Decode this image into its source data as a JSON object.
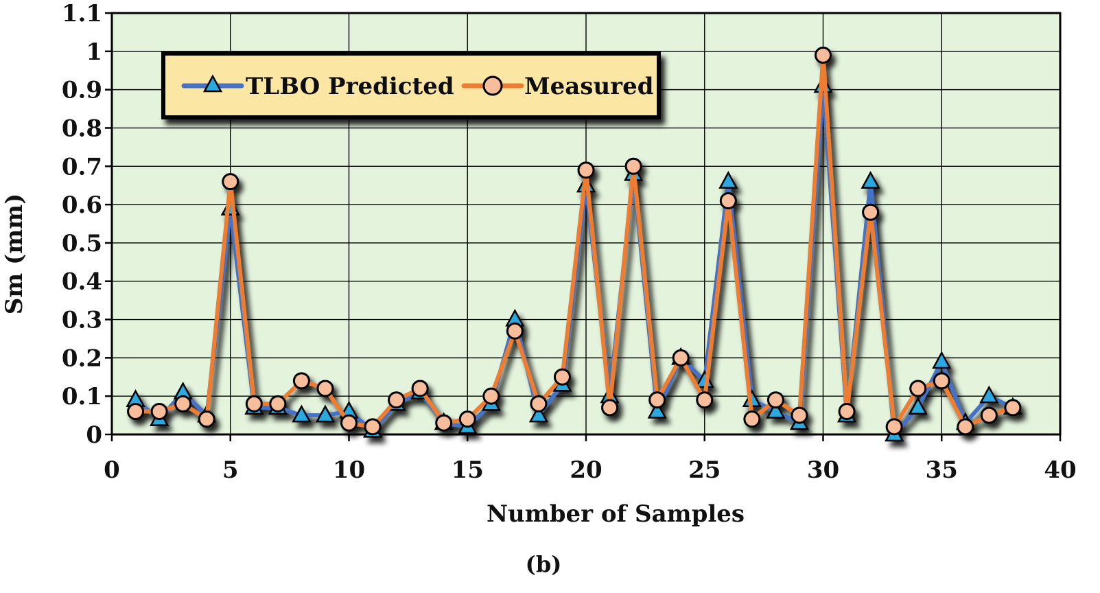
{
  "chart_data": {
    "type": "line",
    "title": "",
    "caption": "(b)",
    "xlabel": "Number of Samples",
    "ylabel": "Sm (mm)",
    "xlim": [
      0,
      40
    ],
    "ylim": [
      0,
      1.1
    ],
    "xticks": [
      0,
      5,
      10,
      15,
      20,
      25,
      30,
      35,
      40
    ],
    "yticks": [
      0,
      0.1,
      0.2,
      0.3,
      0.4,
      0.5,
      0.6,
      0.7,
      0.8,
      0.9,
      1,
      1.1
    ],
    "xtick_labels": [
      "0",
      "5",
      "10",
      "15",
      "20",
      "25",
      "30",
      "35",
      "40"
    ],
    "ytick_labels": [
      "0",
      "0.1",
      "0.2",
      "0.3",
      "0.4",
      "0.5",
      "0.6",
      "0.7",
      "0.8",
      "0.9",
      "1",
      "1.1"
    ],
    "grid": true,
    "legend_position": "top-left",
    "x": [
      1,
      2,
      3,
      4,
      5,
      6,
      7,
      8,
      9,
      10,
      11,
      12,
      13,
      14,
      15,
      16,
      17,
      18,
      19,
      20,
      21,
      22,
      23,
      24,
      25,
      26,
      27,
      28,
      29,
      30,
      31,
      32,
      33,
      34,
      35,
      36,
      37,
      38
    ],
    "series": [
      {
        "name": "TLBO Predicted",
        "color": "#4472c4",
        "marker": "triangle",
        "marker_color": "#29a8e0",
        "values": [
          0.09,
          0.04,
          0.11,
          0.05,
          0.59,
          0.07,
          0.07,
          0.05,
          0.05,
          0.06,
          0.01,
          0.08,
          0.11,
          0.03,
          0.02,
          0.08,
          0.3,
          0.05,
          0.13,
          0.65,
          0.1,
          0.68,
          0.06,
          0.2,
          0.14,
          0.66,
          0.09,
          0.06,
          0.03,
          0.91,
          0.05,
          0.66,
          0.0,
          0.07,
          0.19,
          0.03,
          0.1,
          0.07
        ]
      },
      {
        "name": "Measured",
        "color": "#ed7d31",
        "marker": "circle",
        "marker_color": "#f8bd9b",
        "values": [
          0.06,
          0.06,
          0.08,
          0.04,
          0.66,
          0.08,
          0.08,
          0.14,
          0.12,
          0.03,
          0.02,
          0.09,
          0.12,
          0.03,
          0.04,
          0.1,
          0.27,
          0.08,
          0.15,
          0.69,
          0.07,
          0.7,
          0.09,
          0.2,
          0.09,
          0.61,
          0.04,
          0.09,
          0.05,
          0.99,
          0.06,
          0.58,
          0.02,
          0.12,
          0.14,
          0.02,
          0.05,
          0.07
        ]
      }
    ]
  }
}
